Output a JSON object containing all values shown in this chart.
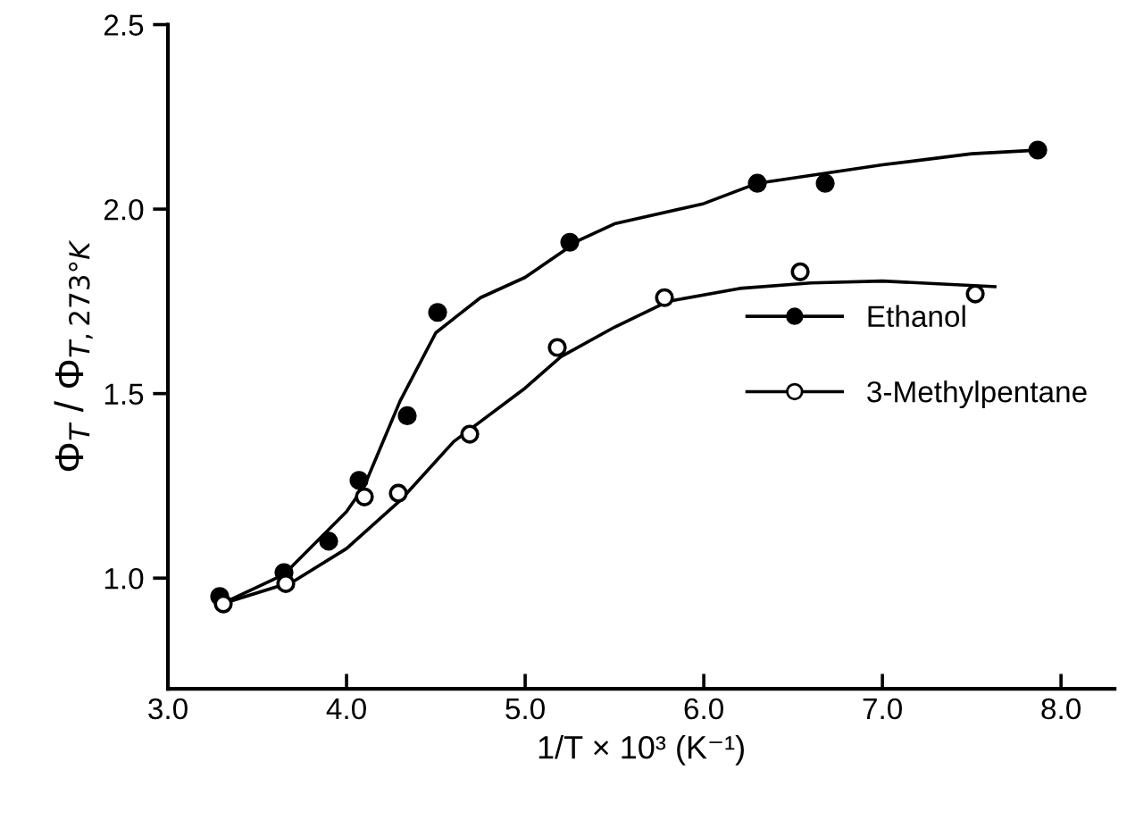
{
  "chart_data": {
    "type": "scatter",
    "xlabel": "1/T × 10³ (K⁻¹)",
    "ylabel": "Φ$_{T}$ / Φ$_{T,273°K}$",
    "xlim": [
      3.0,
      8.3
    ],
    "ylim": [
      0.7,
      2.5
    ],
    "xticks": [
      {
        "value": 3,
        "label": "3.0"
      },
      {
        "value": 4,
        "label": "4.0"
      },
      {
        "value": 5,
        "label": "5.0"
      },
      {
        "value": 6,
        "label": "6.0"
      },
      {
        "value": 7,
        "label": "7.0"
      },
      {
        "value": 8,
        "label": "8.0"
      }
    ],
    "yticks": [
      {
        "value": 1,
        "label": "1.0"
      },
      1.5,
      {
        "value": 2,
        "label": "2.0"
      },
      2.5
    ],
    "grid": false,
    "legend": "right",
    "series": [
      {
        "name": "Ethanol",
        "marker": "circle",
        "color": "#000000",
        "x": [
          3.29,
          3.65,
          3.9,
          4.07,
          4.34,
          4.51,
          5.25,
          6.3,
          6.68,
          7.87
        ],
        "values": [
          0.95,
          1.015,
          1.1,
          1.265,
          1.44,
          1.72,
          1.91,
          2.07,
          2.07,
          2.16
        ]
      },
      {
        "name": "3-Methylpentane",
        "marker": "circle",
        "color": "#ffffff",
        "x": [
          3.31,
          3.66,
          4.1,
          4.29,
          4.69,
          5.18,
          5.78,
          6.54,
          7.52
        ],
        "values": [
          0.93,
          0.985,
          1.22,
          1.23,
          1.39,
          1.625,
          1.76,
          1.83,
          1.77
        ]
      },
      {
        "type": "line",
        "color": "#000000",
        "x": [
          3.3,
          3.65,
          4.0,
          4.1,
          4.3,
          4.5,
          4.75,
          5.0,
          5.3,
          5.5,
          6.0,
          6.3,
          7.0,
          7.5,
          7.88
        ],
        "values": [
          0.93,
          1.01,
          1.18,
          1.25,
          1.48,
          1.665,
          1.76,
          1.815,
          1.915,
          1.96,
          2.015,
          2.07,
          2.12,
          2.15,
          2.16
        ]
      },
      {
        "type": "line",
        "color": "#000000",
        "x": [
          3.3,
          3.7,
          4.0,
          4.3,
          4.6,
          5.0,
          5.2,
          5.5,
          5.8,
          6.2,
          6.6,
          7.0,
          7.63
        ],
        "values": [
          0.93,
          0.99,
          1.08,
          1.21,
          1.37,
          1.515,
          1.6,
          1.68,
          1.75,
          1.785,
          1.8,
          1.805,
          1.79
        ]
      }
    ]
  }
}
